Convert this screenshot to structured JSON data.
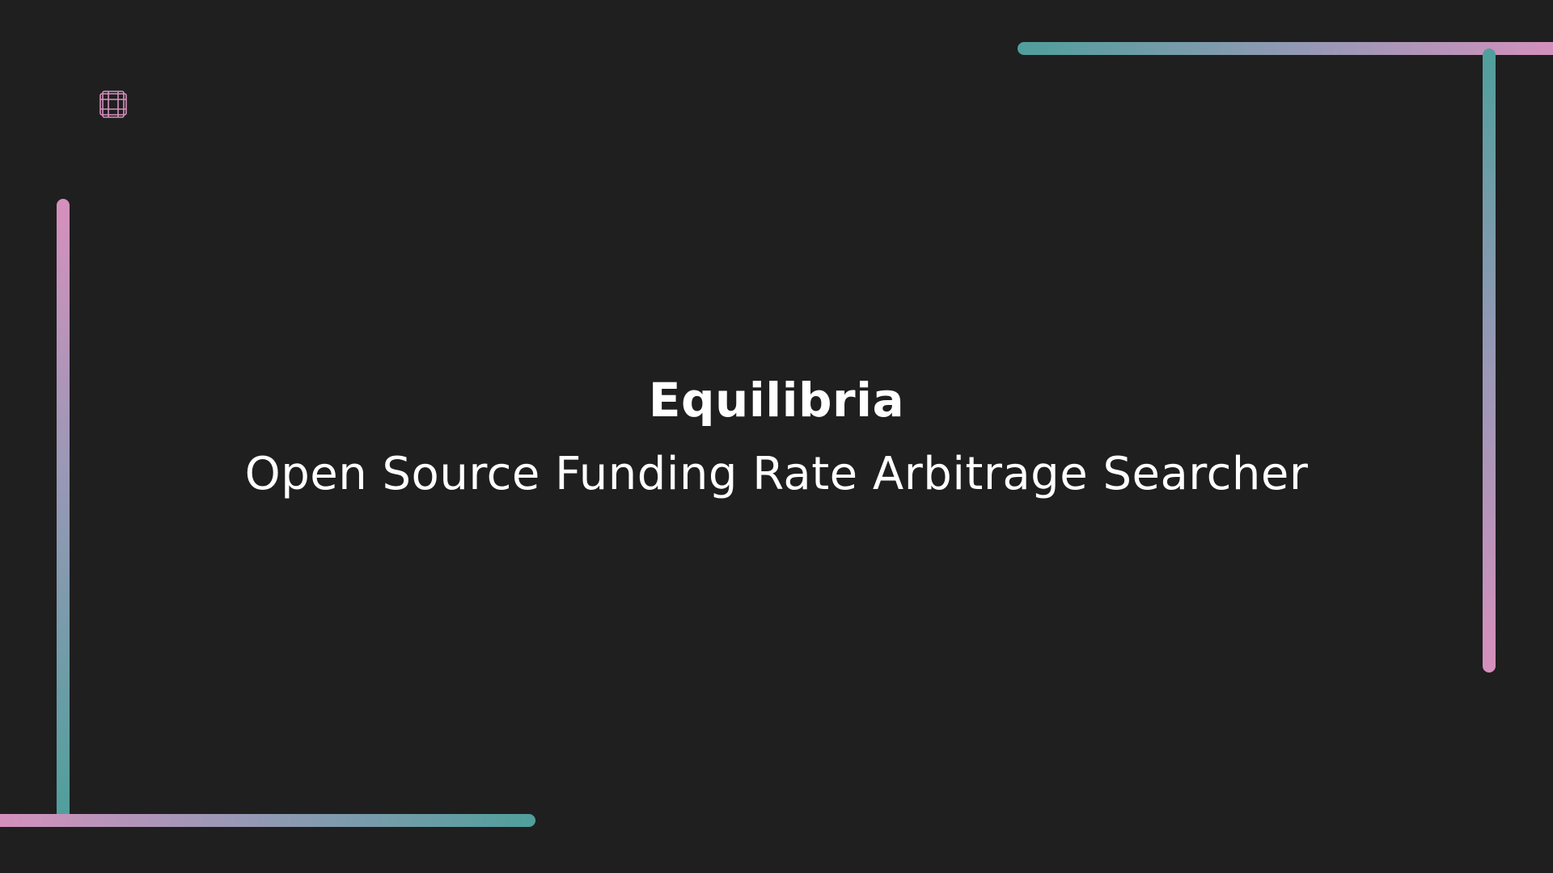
{
  "slide": {
    "title": "Equilibria",
    "subtitle": "Open Source Funding Rate Arbitrage Searcher"
  },
  "colors": {
    "background": "#1f1f1f",
    "text": "#ffffff",
    "accent_pink": "#d690bd",
    "accent_teal": "#4f9f9c",
    "accent_mid": "#9898b6"
  },
  "icons": {
    "logo": "grid-square-logo-icon"
  }
}
